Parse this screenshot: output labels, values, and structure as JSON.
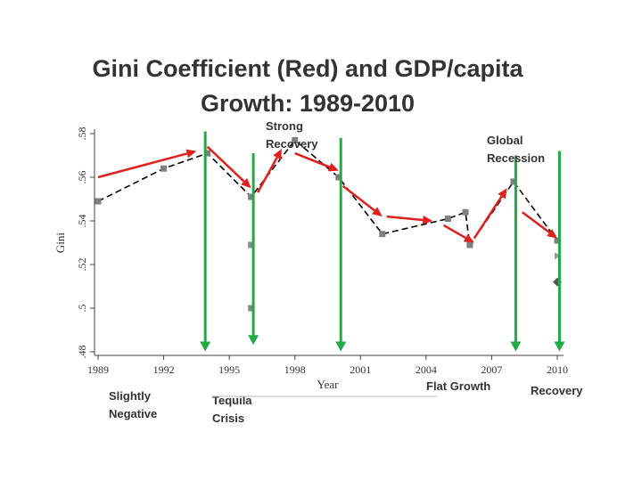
{
  "title_lines": [
    "Gini Coefficient (Red) and GDP/capita",
    "Growth: 1989-2010"
  ],
  "chart_data": {
    "type": "line",
    "title": "Gini Coefficient (Red) and GDP/capita Growth: 1989-2010",
    "xlabel": "Year",
    "ylabel": "Gini",
    "xlim": [
      1989,
      2010
    ],
    "ylim": [
      0.48,
      0.58
    ],
    "xticks": [
      "1989",
      "1992",
      "1995",
      "1998",
      "2001",
      "2004",
      "2007",
      "2010"
    ],
    "yticks": [
      ".48",
      ".5",
      ".52",
      ".54",
      ".56",
      ".58"
    ],
    "series": [
      {
        "x": [
          1989,
          1992,
          1994,
          1996,
          1998,
          2000,
          2002,
          2005,
          2005.8,
          2006,
          2008,
          2010
        ],
        "y": [
          0.549,
          0.564,
          0.571,
          0.551,
          0.577,
          0.56,
          0.534,
          0.541,
          0.544,
          0.529,
          0.558,
          0.531
        ],
        "marker": "square",
        "color": "#000000"
      }
    ],
    "extra_points": [
      {
        "x": 1996,
        "y": 0.529,
        "shape": "square",
        "color": "#888888"
      },
      {
        "x": 1996,
        "y": 0.5,
        "shape": "square",
        "color": "#888888"
      },
      {
        "x": 2010,
        "y": 0.524,
        "shape": "triangle",
        "color": "#999999"
      },
      {
        "x": 2010,
        "y": 0.512,
        "shape": "diamond",
        "color": "#555555"
      }
    ],
    "red_arrows": [
      {
        "from": [
          1989,
          0.56
        ],
        "to": [
          1993.5,
          0.572
        ]
      },
      {
        "from": [
          1994,
          0.574
        ],
        "to": [
          1996,
          0.555
        ]
      },
      {
        "from": [
          1996.3,
          0.553
        ],
        "to": [
          1997.4,
          0.573
        ]
      },
      {
        "from": [
          1998,
          0.571
        ],
        "to": [
          2000,
          0.563
        ]
      },
      {
        "from": [
          2000.2,
          0.556
        ],
        "to": [
          2002,
          0.542
        ]
      },
      {
        "from": [
          2002.2,
          0.542
        ],
        "to": [
          2004.3,
          0.54
        ]
      },
      {
        "from": [
          2004.8,
          0.538
        ],
        "to": [
          2006.2,
          0.53
        ]
      },
      {
        "from": [
          2006.2,
          0.532
        ],
        "to": [
          2007.7,
          0.555
        ]
      },
      {
        "from": [
          2008.4,
          0.544
        ],
        "to": [
          2010,
          0.532
        ]
      }
    ],
    "green_lines": [
      {
        "x": 1993.9,
        "y_top": 0.581,
        "y_bottom": 0.481
      },
      {
        "x": 1996.1,
        "y_top": 0.571,
        "y_bottom": 0.484
      },
      {
        "x": 2000.1,
        "y_top": 0.578,
        "y_bottom": 0.481
      },
      {
        "x": 2008.1,
        "y_top": 0.57,
        "y_bottom": 0.481
      },
      {
        "x": 2010.1,
        "y_top": 0.572,
        "y_bottom": 0.481
      }
    ],
    "annotations": {
      "strong_recovery": [
        "Strong",
        "Recovery"
      ],
      "global_recession": [
        "Global",
        "Recession"
      ],
      "slightly_negative": [
        "Slightly",
        "Negative"
      ],
      "tequila_crisis": [
        "Tequila",
        "Crisis"
      ],
      "flat_growth": "Flat Growth",
      "recovery": "Recovery"
    },
    "colors": {
      "arrow": "#e0201b",
      "period_line": "#22aa44",
      "series": "#000000",
      "marker": "#7f7f7f"
    }
  }
}
